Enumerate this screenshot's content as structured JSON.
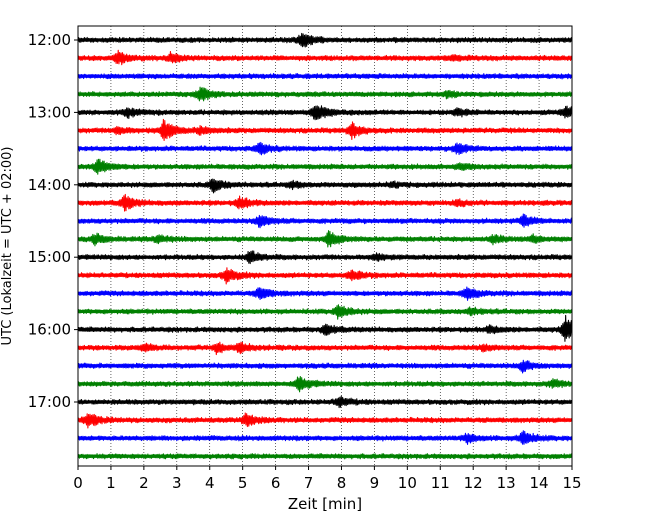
{
  "chart_data": {
    "type": "line",
    "subtype": "helicorder-seismogram",
    "title": "",
    "xlabel": "Zeit  [min]",
    "ylabel": "UTC (Lokalzeit = UTC + 02:00)",
    "xlim": [
      0,
      15
    ],
    "x_ticks": [
      "0",
      "1",
      "2",
      "3",
      "4",
      "5",
      "6",
      "7",
      "8",
      "9",
      "10",
      "11",
      "12",
      "13",
      "14",
      "15"
    ],
    "y_tick_labels": [
      "12:00",
      "13:00",
      "14:00",
      "15:00",
      "16:00",
      "17:00"
    ],
    "grid": {
      "vertical": true,
      "style": "dotted",
      "horizontal": false
    },
    "trace_start_times": [
      "12:00",
      "12:15",
      "12:30",
      "12:45",
      "13:00",
      "13:15",
      "13:30",
      "13:45",
      "14:00",
      "14:15",
      "14:30",
      "14:45",
      "15:00",
      "15:15",
      "15:30",
      "15:45",
      "16:00",
      "16:15",
      "16:30",
      "16:45",
      "17:00",
      "17:15",
      "17:30",
      "17:45"
    ],
    "trace_colors": [
      "#000000",
      "#ff0000",
      "#0000ff",
      "#008000"
    ],
    "series": [
      {
        "start": "12:00",
        "color": "#000000",
        "events": [
          {
            "t": 6.8,
            "amp": 0.9
          }
        ]
      },
      {
        "start": "12:15",
        "color": "#ff0000",
        "events": [
          {
            "t": 1.2,
            "amp": 0.85
          },
          {
            "t": 2.8,
            "amp": 0.55
          },
          {
            "t": 11.4,
            "amp": 0.3
          }
        ]
      },
      {
        "start": "12:30",
        "color": "#0000ff",
        "events": []
      },
      {
        "start": "12:45",
        "color": "#008000",
        "events": [
          {
            "t": 3.7,
            "amp": 0.85
          },
          {
            "t": 11.2,
            "amp": 0.3
          }
        ]
      },
      {
        "start": "13:00",
        "color": "#000000",
        "events": [
          {
            "t": 1.5,
            "amp": 0.5
          },
          {
            "t": 7.2,
            "amp": 1.2
          },
          {
            "t": 11.5,
            "amp": 0.4
          },
          {
            "t": 14.8,
            "amp": 0.7
          }
        ]
      },
      {
        "start": "13:15",
        "color": "#ff0000",
        "events": [
          {
            "t": 1.2,
            "amp": 0.4
          },
          {
            "t": 2.6,
            "amp": 1.25
          },
          {
            "t": 3.7,
            "amp": 0.4
          },
          {
            "t": 8.3,
            "amp": 0.9
          }
        ]
      },
      {
        "start": "13:30",
        "color": "#0000ff",
        "events": [
          {
            "t": 5.5,
            "amp": 0.65
          },
          {
            "t": 11.5,
            "amp": 0.6
          }
        ]
      },
      {
        "start": "13:45",
        "color": "#008000",
        "events": [
          {
            "t": 0.6,
            "amp": 0.9
          },
          {
            "t": 11.6,
            "amp": 0.35
          }
        ]
      },
      {
        "start": "14:00",
        "color": "#000000",
        "events": [
          {
            "t": 4.1,
            "amp": 0.8
          },
          {
            "t": 6.5,
            "amp": 0.35
          },
          {
            "t": 9.5,
            "amp": 0.3
          }
        ]
      },
      {
        "start": "14:15",
        "color": "#ff0000",
        "events": [
          {
            "t": 1.4,
            "amp": 0.9
          },
          {
            "t": 4.9,
            "amp": 0.65
          },
          {
            "t": 11.5,
            "amp": 0.3
          }
        ]
      },
      {
        "start": "14:30",
        "color": "#0000ff",
        "events": [
          {
            "t": 5.5,
            "amp": 0.75
          },
          {
            "t": 13.5,
            "amp": 0.65
          }
        ]
      },
      {
        "start": "14:45",
        "color": "#008000",
        "events": [
          {
            "t": 0.5,
            "amp": 0.55
          },
          {
            "t": 2.4,
            "amp": 0.5
          },
          {
            "t": 7.6,
            "amp": 0.9
          },
          {
            "t": 12.6,
            "amp": 0.4
          },
          {
            "t": 13.8,
            "amp": 0.4
          }
        ]
      },
      {
        "start": "15:00",
        "color": "#000000",
        "events": [
          {
            "t": 5.2,
            "amp": 0.75
          },
          {
            "t": 9.0,
            "amp": 0.35
          }
        ]
      },
      {
        "start": "15:15",
        "color": "#ff0000",
        "events": [
          {
            "t": 4.5,
            "amp": 0.85
          },
          {
            "t": 8.3,
            "amp": 0.6
          }
        ]
      },
      {
        "start": "15:30",
        "color": "#0000ff",
        "events": [
          {
            "t": 5.5,
            "amp": 0.65
          },
          {
            "t": 11.8,
            "amp": 0.7
          }
        ]
      },
      {
        "start": "15:45",
        "color": "#008000",
        "events": [
          {
            "t": 7.9,
            "amp": 0.8
          },
          {
            "t": 11.9,
            "amp": 0.4
          }
        ]
      },
      {
        "start": "16:00",
        "color": "#000000",
        "events": [
          {
            "t": 7.5,
            "amp": 0.6
          },
          {
            "t": 12.5,
            "amp": 0.4
          },
          {
            "t": 14.8,
            "amp": 1.6
          }
        ]
      },
      {
        "start": "16:15",
        "color": "#ff0000",
        "events": [
          {
            "t": 2.0,
            "amp": 0.4
          },
          {
            "t": 4.2,
            "amp": 0.55
          },
          {
            "t": 4.9,
            "amp": 0.5
          },
          {
            "t": 12.3,
            "amp": 0.35
          }
        ]
      },
      {
        "start": "16:30",
        "color": "#0000ff",
        "events": [
          {
            "t": 13.5,
            "amp": 0.65
          }
        ]
      },
      {
        "start": "16:45",
        "color": "#008000",
        "events": [
          {
            "t": 6.7,
            "amp": 0.85
          },
          {
            "t": 14.4,
            "amp": 0.45
          }
        ]
      },
      {
        "start": "17:00",
        "color": "#000000",
        "events": [
          {
            "t": 7.9,
            "amp": 0.6
          }
        ]
      },
      {
        "start": "17:15",
        "color": "#ff0000",
        "events": [
          {
            "t": 0.3,
            "amp": 0.9
          },
          {
            "t": 5.1,
            "amp": 0.75
          }
        ]
      },
      {
        "start": "17:30",
        "color": "#0000ff",
        "events": [
          {
            "t": 11.8,
            "amp": 0.5
          },
          {
            "t": 13.5,
            "amp": 0.85
          }
        ]
      },
      {
        "start": "17:45",
        "color": "#008000",
        "events": []
      }
    ]
  }
}
